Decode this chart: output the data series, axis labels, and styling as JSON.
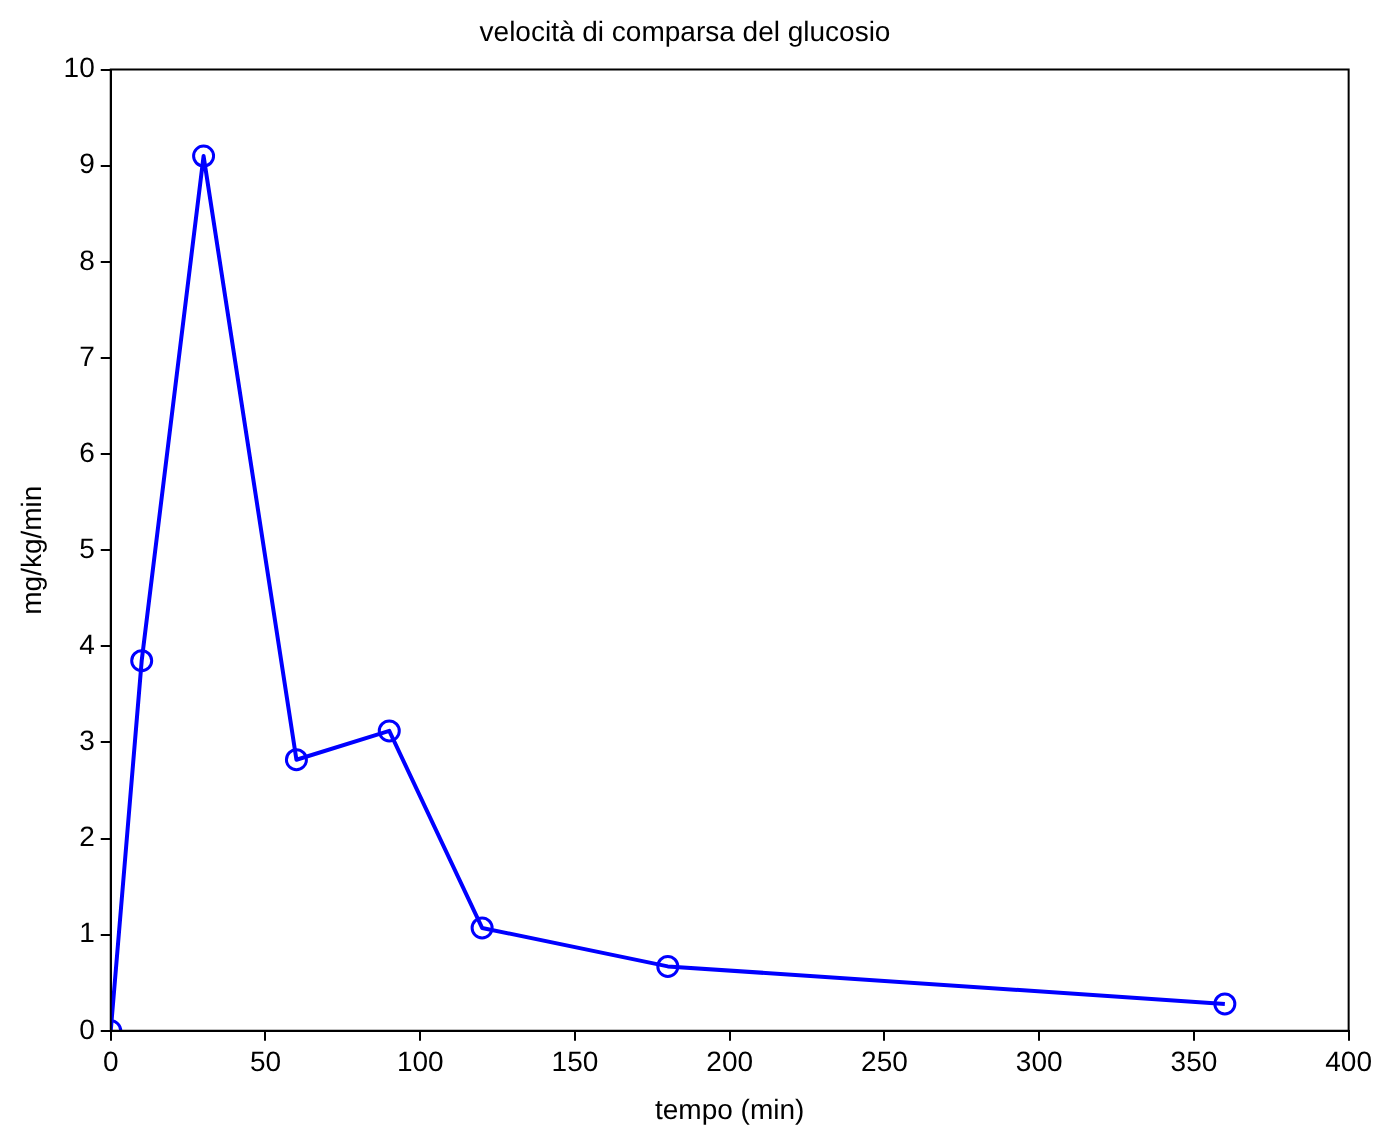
{
  "chart_data": {
    "type": "line",
    "title": "velocità di comparsa del glucosio",
    "xlabel": "tempo (min)",
    "ylabel": "mg/kg/min",
    "x": [
      0,
      10,
      30,
      60,
      90,
      120,
      180,
      360
    ],
    "series": [
      {
        "color": "#0000ff",
        "values": [
          0,
          3.85,
          9.1,
          2.82,
          3.12,
          1.07,
          0.67,
          0.28
        ]
      }
    ],
    "xlim": [
      0,
      400
    ],
    "xticks": [
      0,
      50,
      100,
      150,
      200,
      250,
      300,
      350,
      400
    ],
    "ylim": [
      0,
      10
    ],
    "yticks": [
      0,
      1,
      2,
      3,
      4,
      5,
      6,
      7,
      8,
      9,
      10
    ],
    "grid": false,
    "legend": false,
    "marker": "circle",
    "line_style": "solid"
  }
}
